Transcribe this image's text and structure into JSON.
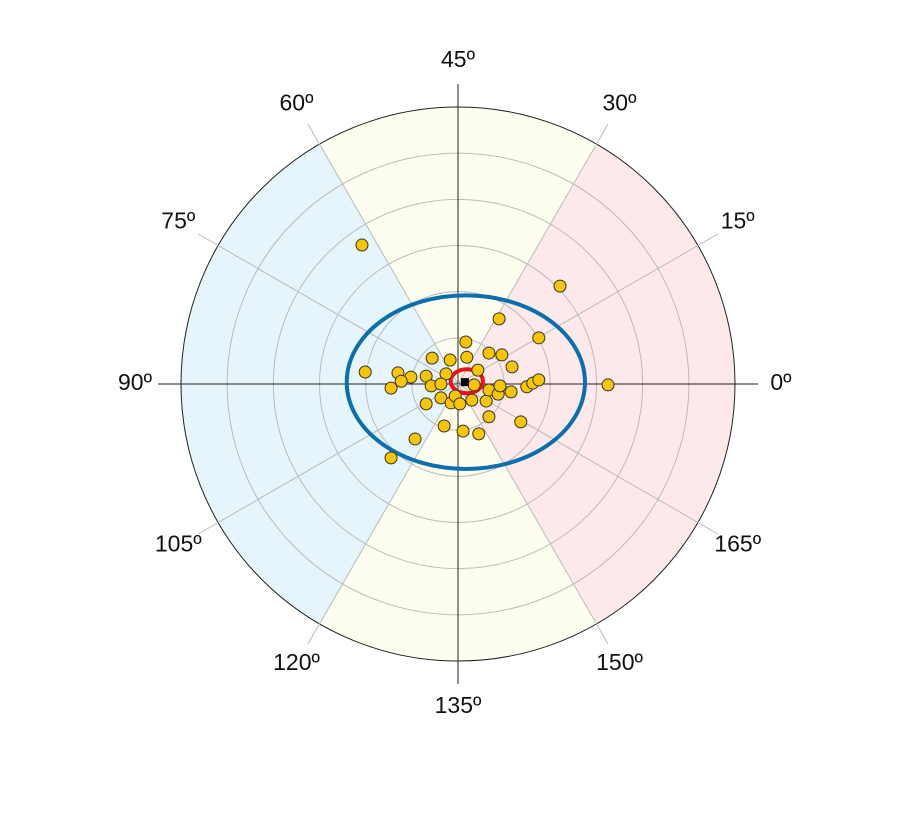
{
  "chart_data": {
    "type": "polar-scatter",
    "rlim": [
      0,
      6
    ],
    "rticks": [
      1,
      2,
      3,
      4,
      5,
      6
    ],
    "angle_ticks": [
      {
        "value": 0,
        "label": "0º"
      },
      {
        "value": 15,
        "label": "15º"
      },
      {
        "value": 30,
        "label": "30º"
      },
      {
        "value": 45,
        "label": "45º"
      },
      {
        "value": 60,
        "label": "60º"
      },
      {
        "value": 75,
        "label": "75º"
      },
      {
        "value": 90,
        "label": "90º"
      },
      {
        "value": 105,
        "label": "105º"
      },
      {
        "value": 120,
        "label": "120º"
      },
      {
        "value": 135,
        "label": "135º"
      },
      {
        "value": 150,
        "label": "150º"
      },
      {
        "value": 165,
        "label": "165º"
      }
    ],
    "sectors": [
      {
        "from": -30,
        "to": 30,
        "color": "#fde9e9"
      },
      {
        "from": 30,
        "to": 60,
        "color": "#fefef0"
      },
      {
        "from": 60,
        "to": 120,
        "color": "#e6f5fb"
      },
      {
        "from": 120,
        "to": 150,
        "color": "#fefef0"
      }
    ],
    "series": [
      {
        "color": "#f7c600",
        "x": [
          -2.08,
          2.21,
          0.89,
          1.75,
          3.25,
          -2.01,
          0.17,
          0.19,
          0.67,
          0.95,
          1.17,
          -0.56,
          -0.17,
          -0.26,
          -0.69,
          -1.02,
          -1.3,
          -1.23,
          -1.45,
          -0.58,
          -0.37,
          -0.37,
          -0.69,
          -0.15,
          -0.06,
          0.04,
          0.3,
          0.61,
          0.67,
          0.87,
          0.91,
          1.15,
          1.49,
          1.62,
          1.75,
          1.36,
          0.67,
          0.45,
          0.11,
          -0.3,
          -0.93,
          -1.45,
          0.43,
          0.35
        ],
        "y": [
          3.01,
          2.12,
          1.41,
          1.0,
          -0.02,
          0.26,
          0.91,
          0.58,
          0.67,
          0.63,
          0.37,
          0.56,
          0.52,
          0.22,
          0.17,
          0.15,
          0.24,
          0.06,
          -0.09,
          -0.04,
          0.0,
          -0.3,
          -0.43,
          -0.41,
          -0.26,
          -0.43,
          -0.35,
          -0.37,
          -0.13,
          -0.22,
          -0.04,
          -0.17,
          -0.06,
          0.02,
          0.09,
          -0.82,
          -0.71,
          -1.08,
          -1.02,
          -0.91,
          -1.19,
          -1.6,
          0.3,
          -0.02
        ]
      }
    ],
    "ellipses": [
      {
        "cx": 0.17,
        "cy": 0.04,
        "rx": 2.58,
        "ry": 1.88,
        "color": "#0a6fae"
      },
      {
        "cx": 0.19,
        "cy": 0.06,
        "rx": 0.35,
        "ry": 0.26,
        "color": "#ee1111"
      }
    ],
    "center_mark": {
      "x": 0.15,
      "y": 0.04,
      "color": "#000000"
    }
  }
}
